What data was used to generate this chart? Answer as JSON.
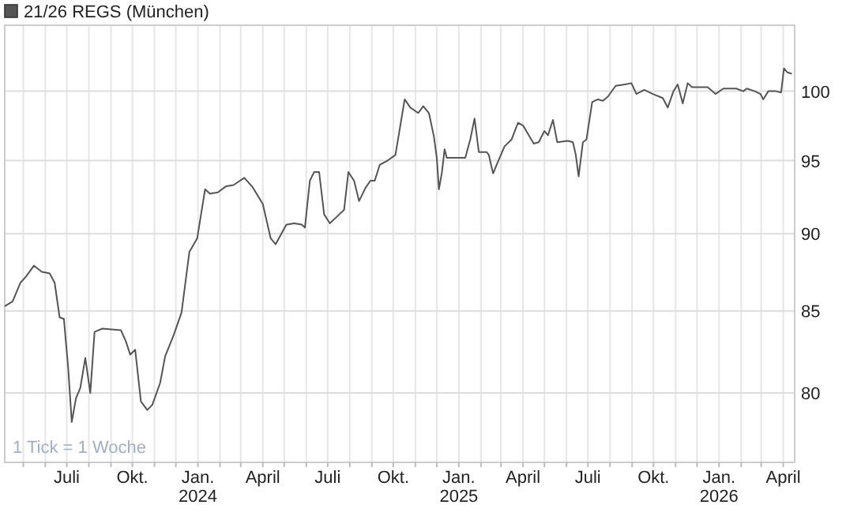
{
  "chart_data": {
    "type": "line",
    "log": true,
    "grid": true,
    "legend": "top left",
    "marker": "none",
    "line_style": "solid",
    "annotations": [
      "1 Tick = 1 Woche"
    ],
    "xlim": [
      "2023-04-05",
      "2026-04-17"
    ],
    "ylim": [
      76,
      105
    ],
    "yticks": [
      80,
      85,
      90,
      95,
      100
    ],
    "xticks": [
      {
        "value": "2023-05-01",
        "label": null
      },
      {
        "value": "2023-06-01",
        "label": null
      },
      {
        "value": "2023-07-01",
        "label": "Juli"
      },
      {
        "value": "2023-08-01",
        "label": null
      },
      {
        "value": "2023-09-01",
        "label": null
      },
      {
        "value": "2023-10-01",
        "label": "Okt."
      },
      {
        "value": "2023-11-01",
        "label": null
      },
      {
        "value": "2023-12-01",
        "label": null
      },
      {
        "value": "2024-01-01",
        "label": "Jan.\n2024"
      },
      {
        "value": "2024-02-01",
        "label": null
      },
      {
        "value": "2024-03-01",
        "label": null
      },
      {
        "value": "2024-04-01",
        "label": "April"
      },
      {
        "value": "2024-05-01",
        "label": null
      },
      {
        "value": "2024-06-01",
        "label": null
      },
      {
        "value": "2024-07-01",
        "label": "Juli"
      },
      {
        "value": "2024-08-01",
        "label": null
      },
      {
        "value": "2024-09-01",
        "label": null
      },
      {
        "value": "2024-10-01",
        "label": "Okt."
      },
      {
        "value": "2024-11-01",
        "label": null
      },
      {
        "value": "2024-12-01",
        "label": null
      },
      {
        "value": "2025-01-01",
        "label": "Jan.\n2025"
      },
      {
        "value": "2025-02-01",
        "label": null
      },
      {
        "value": "2025-03-01",
        "label": null
      },
      {
        "value": "2025-04-01",
        "label": "April"
      },
      {
        "value": "2025-05-01",
        "label": null
      },
      {
        "value": "2025-06-01",
        "label": null
      },
      {
        "value": "2025-07-01",
        "label": "Juli"
      },
      {
        "value": "2025-08-01",
        "label": null
      },
      {
        "value": "2025-09-01",
        "label": null
      },
      {
        "value": "2025-10-01",
        "label": "Okt."
      },
      {
        "value": "2025-11-01",
        "label": null
      },
      {
        "value": "2025-12-01",
        "label": null
      },
      {
        "value": "2026-01-01",
        "label": "Jan.\n2026"
      },
      {
        "value": "2026-02-01",
        "label": null
      },
      {
        "value": "2026-03-01",
        "label": null
      },
      {
        "value": "2026-04-01",
        "label": "April"
      }
    ],
    "series": [
      {
        "name": "21/26 REGS (München)",
        "color": "#555555",
        "x": [
          "2023-04-05",
          "2023-04-16",
          "2023-04-27",
          "2023-05-05",
          "2023-05-16",
          "2023-05-27",
          "2023-06-07",
          "2023-06-14",
          "2023-06-21",
          "2023-06-27",
          "2023-07-03",
          "2023-07-08",
          "2023-07-14",
          "2023-07-20",
          "2023-07-27",
          "2023-08-03",
          "2023-08-09",
          "2023-08-20",
          "2023-09-15",
          "2023-09-22",
          "2023-09-28",
          "2023-10-05",
          "2023-10-13",
          "2023-10-22",
          "2023-10-29",
          "2023-11-09",
          "2023-11-16",
          "2023-11-28",
          "2023-12-09",
          "2023-12-20",
          "2023-12-31",
          "2024-01-11",
          "2024-01-18",
          "2024-01-29",
          "2024-02-09",
          "2024-02-20",
          "2024-03-06",
          "2024-03-17",
          "2024-04-01",
          "2024-04-12",
          "2024-04-19",
          "2024-05-04",
          "2024-05-15",
          "2024-05-26",
          "2024-05-30",
          "2024-06-06",
          "2024-06-12",
          "2024-06-19",
          "2024-06-26",
          "2024-07-04",
          "2024-07-13",
          "2024-07-24",
          "2024-07-30",
          "2024-08-07",
          "2024-08-14",
          "2024-08-23",
          "2024-08-30",
          "2024-09-05",
          "2024-09-12",
          "2024-09-23",
          "2024-10-04",
          "2024-10-17",
          "2024-10-25",
          "2024-11-05",
          "2024-11-12",
          "2024-11-20",
          "2024-11-27",
          "2024-12-01",
          "2024-12-04",
          "2024-12-08",
          "2024-12-12",
          "2024-12-15",
          "2024-12-26",
          "2025-01-10",
          "2025-01-17",
          "2025-01-23",
          "2025-01-29",
          "2025-02-09",
          "2025-02-12",
          "2025-02-18",
          "2025-02-23",
          "2025-03-06",
          "2025-03-16",
          "2025-03-25",
          "2025-04-01",
          "2025-04-16",
          "2025-04-23",
          "2025-05-01",
          "2025-05-06",
          "2025-05-13",
          "2025-05-19",
          "2025-06-03",
          "2025-06-10",
          "2025-06-14",
          "2025-06-18",
          "2025-06-24",
          "2025-06-29",
          "2025-07-07",
          "2025-07-15",
          "2025-07-22",
          "2025-07-29",
          "2025-08-09",
          "2025-08-22",
          "2025-08-31",
          "2025-09-07",
          "2025-09-18",
          "2025-09-30",
          "2025-10-14",
          "2025-10-21",
          "2025-10-29",
          "2025-11-04",
          "2025-11-11",
          "2025-11-18",
          "2025-11-24",
          "2025-12-16",
          "2025-12-27",
          "2026-01-07",
          "2026-01-25",
          "2026-02-04",
          "2026-02-09",
          "2026-02-20",
          "2026-02-28",
          "2026-03-04",
          "2026-03-11",
          "2026-03-22",
          "2026-03-29",
          "2026-04-02",
          "2026-04-07",
          "2026-04-13"
        ],
        "values": [
          85.3,
          85.6,
          86.8,
          87.2,
          87.9,
          87.5,
          87.4,
          86.8,
          84.6,
          84.5,
          81.5,
          78.3,
          79.7,
          80.3,
          82.1,
          80.0,
          83.7,
          83.9,
          83.8,
          83.1,
          82.3,
          82.6,
          79.5,
          79.0,
          79.3,
          80.6,
          82.2,
          83.5,
          84.9,
          88.8,
          89.7,
          93.0,
          92.7,
          92.8,
          93.2,
          93.3,
          93.8,
          93.2,
          92.0,
          89.7,
          89.3,
          90.6,
          90.7,
          90.6,
          90.4,
          93.6,
          94.2,
          94.2,
          91.3,
          90.7,
          91.1,
          91.6,
          94.2,
          93.6,
          92.2,
          93.1,
          93.6,
          93.6,
          94.7,
          95.0,
          95.4,
          99.4,
          98.8,
          98.4,
          98.9,
          98.4,
          96.7,
          95.2,
          93.0,
          94.1,
          95.8,
          95.2,
          95.2,
          95.2,
          96.5,
          98.0,
          95.6,
          95.6,
          95.4,
          94.1,
          94.7,
          96.0,
          96.5,
          97.7,
          97.5,
          96.2,
          96.3,
          97.1,
          96.8,
          97.9,
          96.3,
          96.4,
          96.3,
          95.4,
          93.9,
          96.3,
          96.5,
          99.2,
          99.4,
          99.3,
          99.6,
          100.4,
          100.5,
          100.6,
          99.8,
          100.1,
          99.8,
          99.5,
          98.8,
          100.0,
          100.5,
          99.1,
          100.6,
          100.3,
          100.3,
          99.8,
          100.2,
          100.2,
          100.0,
          100.2,
          100.0,
          99.8,
          99.4,
          100.0,
          100.0,
          99.9,
          101.7,
          101.4,
          101.3
        ]
      }
    ]
  }
}
